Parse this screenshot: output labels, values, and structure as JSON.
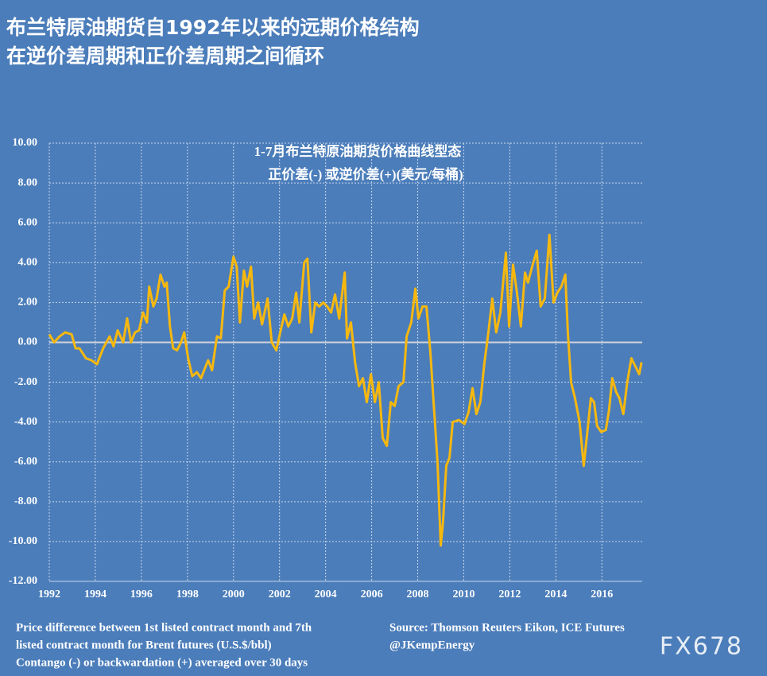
{
  "header": [
    "布兰特原油期货自1992年以来的远期价格结构",
    "在逆价差周期和正价差周期之间循环"
  ],
  "chart_data": {
    "type": "line",
    "title": [
      "1-7月布兰特原油期货价格曲线型态",
      "正价差(-) 或逆价差(+)(美元/每桶)"
    ],
    "color": "#f6b80f",
    "x": [
      1992.0,
      1992.21,
      1992.45,
      1992.69,
      1992.97,
      1993.14,
      1993.31,
      1993.59,
      1993.83,
      1994.07,
      1994.34,
      1994.62,
      1994.79,
      1994.97,
      1995.21,
      1995.38,
      1995.55,
      1995.72,
      1995.9,
      1996.07,
      1996.24,
      1996.34,
      1996.52,
      1996.66,
      1996.83,
      1997.0,
      1997.1,
      1997.24,
      1997.38,
      1997.55,
      1997.72,
      1997.86,
      1998.03,
      1998.21,
      1998.41,
      1998.59,
      1998.76,
      1998.9,
      1999.07,
      1999.28,
      1999.45,
      1999.62,
      1999.79,
      2000.0,
      2000.14,
      2000.28,
      2000.45,
      2000.59,
      2000.76,
      2000.9,
      2001.07,
      2001.24,
      2001.48,
      2001.66,
      2001.86,
      2002.03,
      2002.21,
      2002.38,
      2002.55,
      2002.72,
      2002.86,
      2003.07,
      2003.21,
      2003.38,
      2003.55,
      2003.72,
      2003.9,
      2004.07,
      2004.24,
      2004.41,
      2004.59,
      2004.83,
      2004.93,
      2005.1,
      2005.28,
      2005.45,
      2005.62,
      2005.79,
      2005.97,
      2006.14,
      2006.31,
      2006.48,
      2006.66,
      2006.83,
      2007.0,
      2007.17,
      2007.38,
      2007.52,
      2007.72,
      2007.9,
      2008.03,
      2008.21,
      2008.38,
      2008.55,
      2008.69,
      2008.86,
      2009.0,
      2009.1,
      2009.24,
      2009.38,
      2009.52,
      2009.79,
      2010.03,
      2010.21,
      2010.38,
      2010.55,
      2010.72,
      2010.9,
      2011.07,
      2011.24,
      2011.41,
      2011.59,
      2011.83,
      2011.97,
      2012.14,
      2012.31,
      2012.48,
      2012.66,
      2012.79,
      2012.97,
      2013.17,
      2013.34,
      2013.52,
      2013.72,
      2013.9,
      2014.07,
      2014.24,
      2014.41,
      2014.52,
      2014.66,
      2014.83,
      2015.03,
      2015.21,
      2015.34,
      2015.52,
      2015.66,
      2015.79,
      2015.97,
      2016.17,
      2016.31,
      2016.45,
      2016.62,
      2016.76,
      2016.93,
      2017.1,
      2017.28,
      2017.45,
      2017.62,
      2017.72
    ],
    "values": [
      0.4,
      0.0,
      0.3,
      0.5,
      0.4,
      -0.3,
      -0.3,
      -0.8,
      -0.9,
      -1.1,
      -0.3,
      0.3,
      -0.2,
      0.6,
      0.0,
      1.2,
      0.0,
      0.5,
      0.6,
      1.5,
      1.0,
      2.8,
      1.8,
      2.2,
      3.4,
      2.8,
      3.0,
      0.8,
      -0.3,
      -0.4,
      0.0,
      0.5,
      -0.8,
      -1.7,
      -1.5,
      -1.8,
      -1.3,
      -0.9,
      -1.4,
      0.3,
      0.2,
      2.6,
      2.8,
      4.3,
      3.8,
      1.0,
      3.6,
      2.8,
      3.8,
      1.2,
      2.0,
      0.9,
      2.2,
      0.0,
      -0.4,
      0.5,
      1.4,
      0.8,
      1.2,
      2.5,
      1.0,
      4.0,
      4.2,
      0.5,
      2.0,
      1.8,
      2.0,
      1.8,
      1.5,
      2.4,
      1.2,
      3.5,
      0.2,
      1.0,
      -1.0,
      -2.2,
      -1.8,
      -3.0,
      -1.6,
      -3.0,
      -2.0,
      -4.8,
      -5.2,
      -3.0,
      -3.2,
      -2.2,
      -2.0,
      0.3,
      1.0,
      2.7,
      1.2,
      1.8,
      1.8,
      -0.5,
      -3.0,
      -6.0,
      -10.2,
      -9.0,
      -6.2,
      -5.8,
      -4.0,
      -3.9,
      -4.1,
      -3.5,
      -2.3,
      -3.6,
      -3.0,
      -1.0,
      0.5,
      2.2,
      0.5,
      1.5,
      4.5,
      0.8,
      3.9,
      2.5,
      0.8,
      3.5,
      3.0,
      3.8,
      4.6,
      1.8,
      2.2,
      5.4,
      2.0,
      2.5,
      2.8,
      3.4,
      0.5,
      -2.0,
      -2.8,
      -4.0,
      -6.2,
      -4.8,
      -2.8,
      -3.0,
      -4.2,
      -4.5,
      -4.4,
      -3.4,
      -1.8,
      -2.5,
      -2.8,
      -3.6,
      -2.0,
      -0.8,
      -1.2,
      -1.6,
      -1.0
    ],
    "xlim": [
      1992,
      2017.75
    ],
    "xticks": [
      1992,
      1994,
      1996,
      1998,
      2000,
      2002,
      2004,
      2006,
      2008,
      2010,
      2012,
      2014,
      2016
    ],
    "ylim": [
      -12,
      10
    ],
    "yticks": [
      {
        "value": -12,
        "label": "-12.00"
      },
      {
        "value": -10,
        "label": "-10.00"
      },
      {
        "value": -8,
        "label": "-8.00"
      },
      {
        "value": -6,
        "label": "-6.00"
      },
      {
        "value": -4,
        "label": "-4.00"
      },
      {
        "value": -2,
        "label": "-2.00"
      },
      {
        "value": 0,
        "label": "0.00"
      },
      {
        "value": 2,
        "label": "2.00"
      },
      {
        "value": 4,
        "label": "4.00"
      },
      {
        "value": 6,
        "label": "6.00"
      },
      {
        "value": 8,
        "label": "8.00"
      },
      {
        "value": 10,
        "label": "10.00"
      }
    ],
    "grid": true
  },
  "notes": [
    "Price difference between 1st listed contract month and 7th",
    "listed contract month for Brent futures (U.S.$/bbl)",
    "Contango (-) or backwardation (+) averaged over 30 days"
  ],
  "source": [
    "Source: Thomson Reuters Eikon, ICE Futures",
    "@JKempEnergy"
  ],
  "watermark": "FX678"
}
